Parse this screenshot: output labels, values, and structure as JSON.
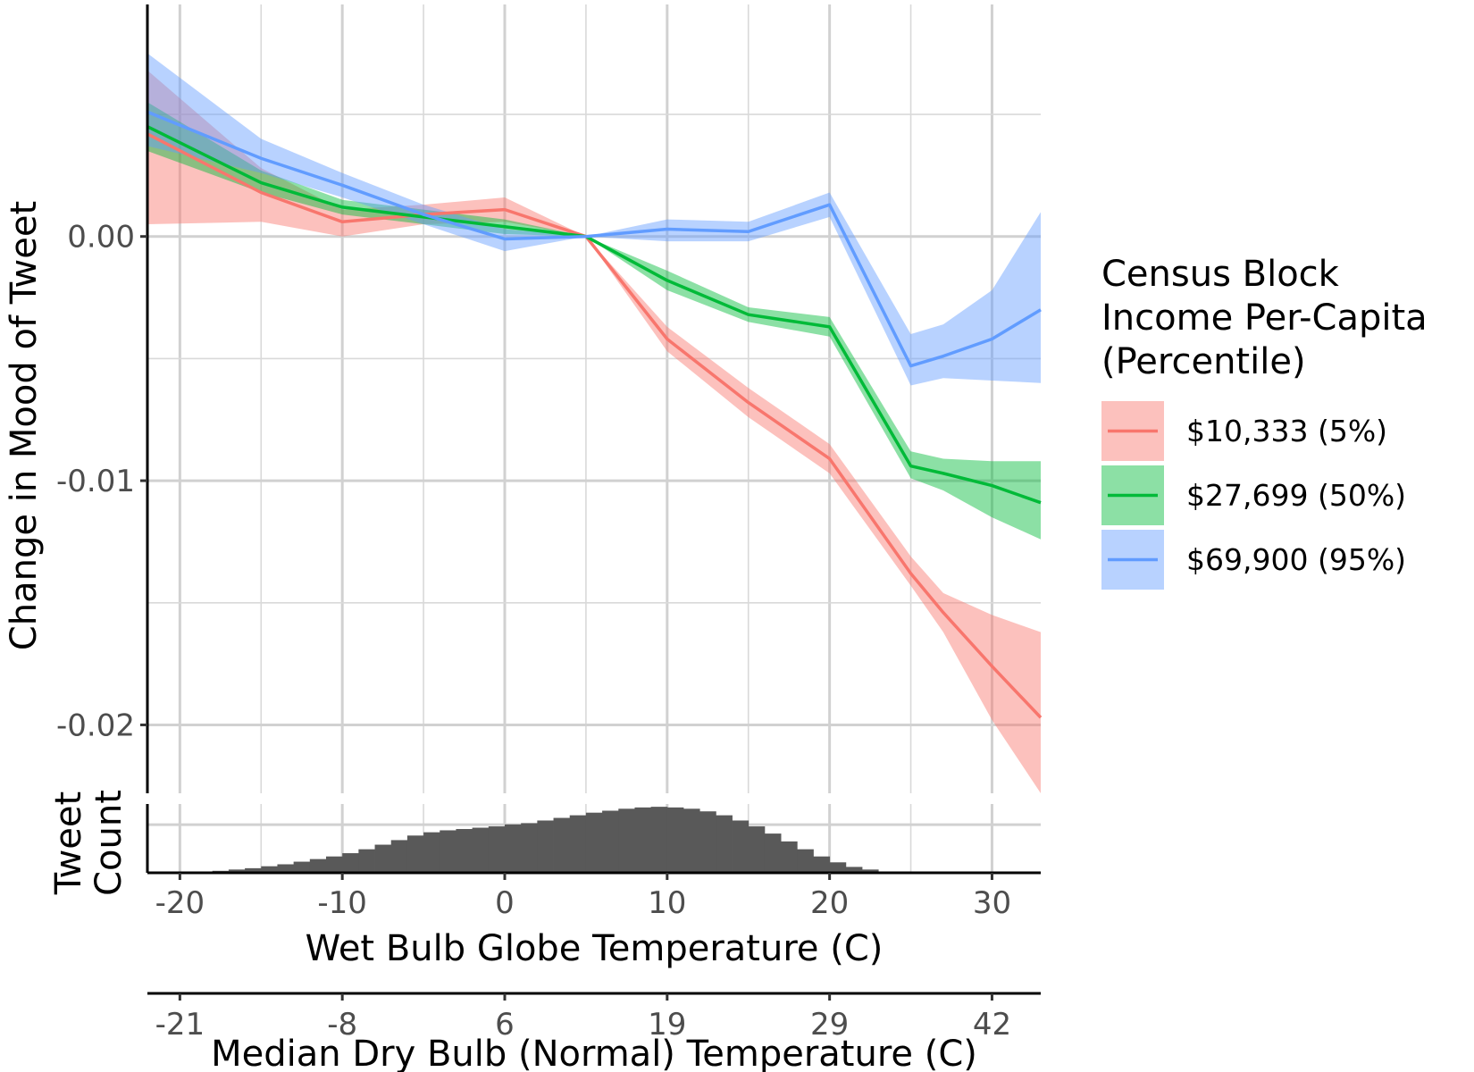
{
  "chart_data": [
    {
      "type": "line",
      "xlabel": "Wet Bulb Globe Temperature (C)",
      "ylabel": "Change in Mood of Tweet",
      "xlim": [
        -22,
        33
      ],
      "ylim": [
        -0.0228,
        0.0095
      ],
      "x_ticks": [
        -20,
        -10,
        0,
        10,
        20,
        30
      ],
      "x_tick_labels": [
        "-20",
        "-10",
        "0",
        "10",
        "20",
        "30"
      ],
      "y_ticks": [
        0.0,
        -0.01,
        -0.02
      ],
      "y_tick_labels": [
        "0.00",
        "-0.01",
        "-0.02"
      ],
      "grid": true,
      "legend": {
        "title_lines": [
          "Census Block",
          "Income Per-Capita",
          "(Percentile)"
        ],
        "position": "right"
      },
      "series": [
        {
          "name": "$10,333 (5%)",
          "color": "#F8766D",
          "x": [
            -22,
            -15,
            -10,
            -5,
            0,
            5,
            10,
            15,
            20,
            25,
            27,
            30,
            33
          ],
          "values": [
            0.0042,
            0.0018,
            0.0006,
            0.0009,
            0.0011,
            0.0,
            -0.0042,
            -0.0068,
            -0.0091,
            -0.0138,
            -0.0154,
            -0.0176,
            -0.0197
          ],
          "lower": [
            0.0005,
            0.0006,
            0.0,
            0.0005,
            0.0006,
            0.0,
            -0.0047,
            -0.0074,
            -0.0097,
            -0.0143,
            -0.0162,
            -0.0198,
            -0.0228
          ],
          "upper": [
            0.0068,
            0.0028,
            0.0011,
            0.0013,
            0.0016,
            0.0,
            -0.0037,
            -0.0062,
            -0.0085,
            -0.0131,
            -0.0146,
            -0.0155,
            -0.0162
          ]
        },
        {
          "name": "$27,699 (50%)",
          "color": "#00BA38",
          "x": [
            -22,
            -15,
            -10,
            -5,
            0,
            5,
            10,
            15,
            20,
            25,
            27,
            30,
            33
          ],
          "values": [
            0.0045,
            0.0022,
            0.0012,
            0.0008,
            0.0004,
            0.0,
            -0.0018,
            -0.0032,
            -0.0037,
            -0.0094,
            -0.0097,
            -0.0102,
            -0.0109
          ],
          "lower": [
            0.0035,
            0.0018,
            0.0009,
            0.0005,
            0.0001,
            0.0,
            -0.0022,
            -0.0035,
            -0.0041,
            -0.0099,
            -0.0104,
            -0.0115,
            -0.0124
          ],
          "upper": [
            0.0055,
            0.0027,
            0.0015,
            0.0011,
            0.0007,
            0.0,
            -0.0014,
            -0.0029,
            -0.0033,
            -0.0088,
            -0.0091,
            -0.0092,
            -0.0092
          ]
        },
        {
          "name": "$69,900 (95%)",
          "color": "#619CFF",
          "x": [
            -22,
            -15,
            -10,
            -5,
            0,
            5,
            10,
            15,
            20,
            25,
            27,
            30,
            33
          ],
          "values": [
            0.0051,
            0.0032,
            0.0021,
            0.0009,
            -0.0001,
            0.0,
            0.0003,
            0.0002,
            0.0013,
            -0.0053,
            -0.0049,
            -0.0042,
            -0.003
          ],
          "lower": [
            0.0037,
            0.0026,
            0.0016,
            0.0005,
            -0.0006,
            0.0,
            -0.0002,
            -0.0002,
            0.0008,
            -0.0061,
            -0.0058,
            -0.0059,
            -0.006
          ],
          "upper": [
            0.0075,
            0.004,
            0.0026,
            0.0013,
            0.0003,
            0.0,
            0.0007,
            0.0006,
            0.0018,
            -0.004,
            -0.0036,
            -0.0022,
            0.001
          ]
        }
      ]
    },
    {
      "type": "bar",
      "ylabel_lines": [
        "Tweet",
        "Count"
      ],
      "x_start": -22,
      "bin_width": 1,
      "values": [
        0.0,
        0.0,
        0.01,
        0.02,
        0.03,
        0.05,
        0.07,
        0.1,
        0.13,
        0.17,
        0.21,
        0.25,
        0.3,
        0.36,
        0.43,
        0.5,
        0.57,
        0.62,
        0.65,
        0.67,
        0.69,
        0.71,
        0.74,
        0.76,
        0.8,
        0.84,
        0.88,
        0.92,
        0.95,
        0.98,
        1.0,
        1.01,
        1.0,
        0.98,
        0.94,
        0.88,
        0.8,
        0.71,
        0.6,
        0.48,
        0.36,
        0.25,
        0.16,
        0.09,
        0.05,
        0.02,
        0.01,
        0.0,
        0.0,
        0.0,
        0.0,
        0.0,
        0.0,
        0.0,
        0.0
      ],
      "color": "#595959"
    },
    {
      "type": "axis",
      "xlabel": "Median Dry Bulb (Normal) Temperature (C)",
      "tick_positions_wbgt": [
        -20,
        -10,
        0,
        10,
        20,
        30
      ],
      "tick_labels": [
        "-21",
        "-8",
        "6",
        "19",
        "29",
        "42"
      ]
    }
  ]
}
